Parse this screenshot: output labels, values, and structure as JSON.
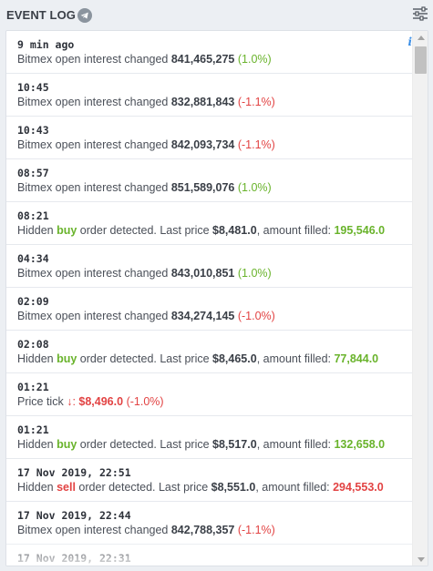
{
  "header": {
    "title": "EVENT LOG"
  },
  "events": [
    {
      "time": "9 min ago",
      "pre": "Bitmex open interest changed ",
      "value": "841,465,275",
      "change": "(1.0%)"
    },
    {
      "time": "10:45",
      "pre": "Bitmex open interest changed ",
      "value": "832,881,843",
      "change": "(-1.1%)"
    },
    {
      "time": "10:43",
      "pre": "Bitmex open interest changed ",
      "value": "842,093,734",
      "change": "(-1.1%)"
    },
    {
      "time": "08:57",
      "pre": "Bitmex open interest changed ",
      "value": "851,589,076",
      "change": "(1.0%)"
    },
    {
      "time": "08:21",
      "pre": "Hidden ",
      "side": "buy",
      "mid": " order detected. Last price ",
      "price": "$8,481.0",
      "post": ", amount filled: ",
      "amount": "195,546.0"
    },
    {
      "time": "04:34",
      "pre": "Bitmex open interest changed ",
      "value": "843,010,851",
      "change": "(1.0%)"
    },
    {
      "time": "02:09",
      "pre": "Bitmex open interest changed ",
      "value": "834,274,145",
      "change": "(-1.0%)"
    },
    {
      "time": "02:08",
      "pre": "Hidden ",
      "side": "buy",
      "mid": " order detected. Last price ",
      "price": "$8,465.0",
      "post": ", amount filled: ",
      "amount": "77,844.0"
    },
    {
      "time": "01:21",
      "pre": "Price tick ",
      "arrow": "↓:",
      "price": "$8,496.0",
      "change": "(-1.0%)"
    },
    {
      "time": "01:21",
      "pre": "Hidden ",
      "side": "buy",
      "mid": " order detected. Last price ",
      "price": "$8,517.0",
      "post": ", amount filled: ",
      "amount": "132,658.0"
    },
    {
      "time": "17 Nov 2019, 22:51",
      "pre": "Hidden ",
      "side": "sell",
      "mid": " order detected. Last price ",
      "price": "$8,551.0",
      "post": ", amount filled: ",
      "amount": "294,553.0"
    },
    {
      "time": "17 Nov 2019, 22:44",
      "pre": "Bitmex open interest changed ",
      "value": "842,788,357",
      "change": "(-1.1%)"
    },
    {
      "time": "17 Nov 2019, 22:31"
    }
  ],
  "info_icon": "i",
  "icons": {
    "telegram": "telegram-icon",
    "settings": "sliders-settings-icon",
    "info": "info-icon"
  },
  "colors": {
    "positive": "#69b32b",
    "negative": "#e24343",
    "info": "#3a8ee6",
    "background": "#eceff3"
  }
}
